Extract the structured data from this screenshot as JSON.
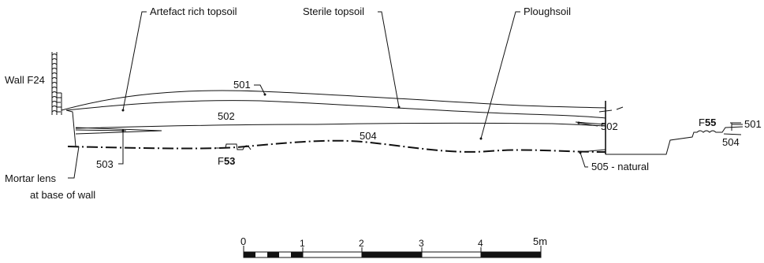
{
  "labels": {
    "artefact_topsoil": "Artefact rich topsoil",
    "sterile_topsoil": "Sterile topsoil",
    "ploughsoil": "Ploughsoil",
    "wall": "Wall F24",
    "ctx_501": "501",
    "ctx_502_left": "502",
    "ctx_502_right": "502",
    "ctx_504": "504",
    "ctx_503": "503",
    "ctx_505": "505 - natural",
    "mortar_line1": "Mortar lens",
    "mortar_line2": "at base of wall",
    "f53_prefix": "F",
    "f53_num": "53",
    "f55_prefix": "F",
    "f55_num": "55",
    "f55_501": "501",
    "f55_504": "504"
  },
  "scale": {
    "ticks": [
      "0",
      "1",
      "2",
      "3",
      "4",
      "5m"
    ]
  }
}
